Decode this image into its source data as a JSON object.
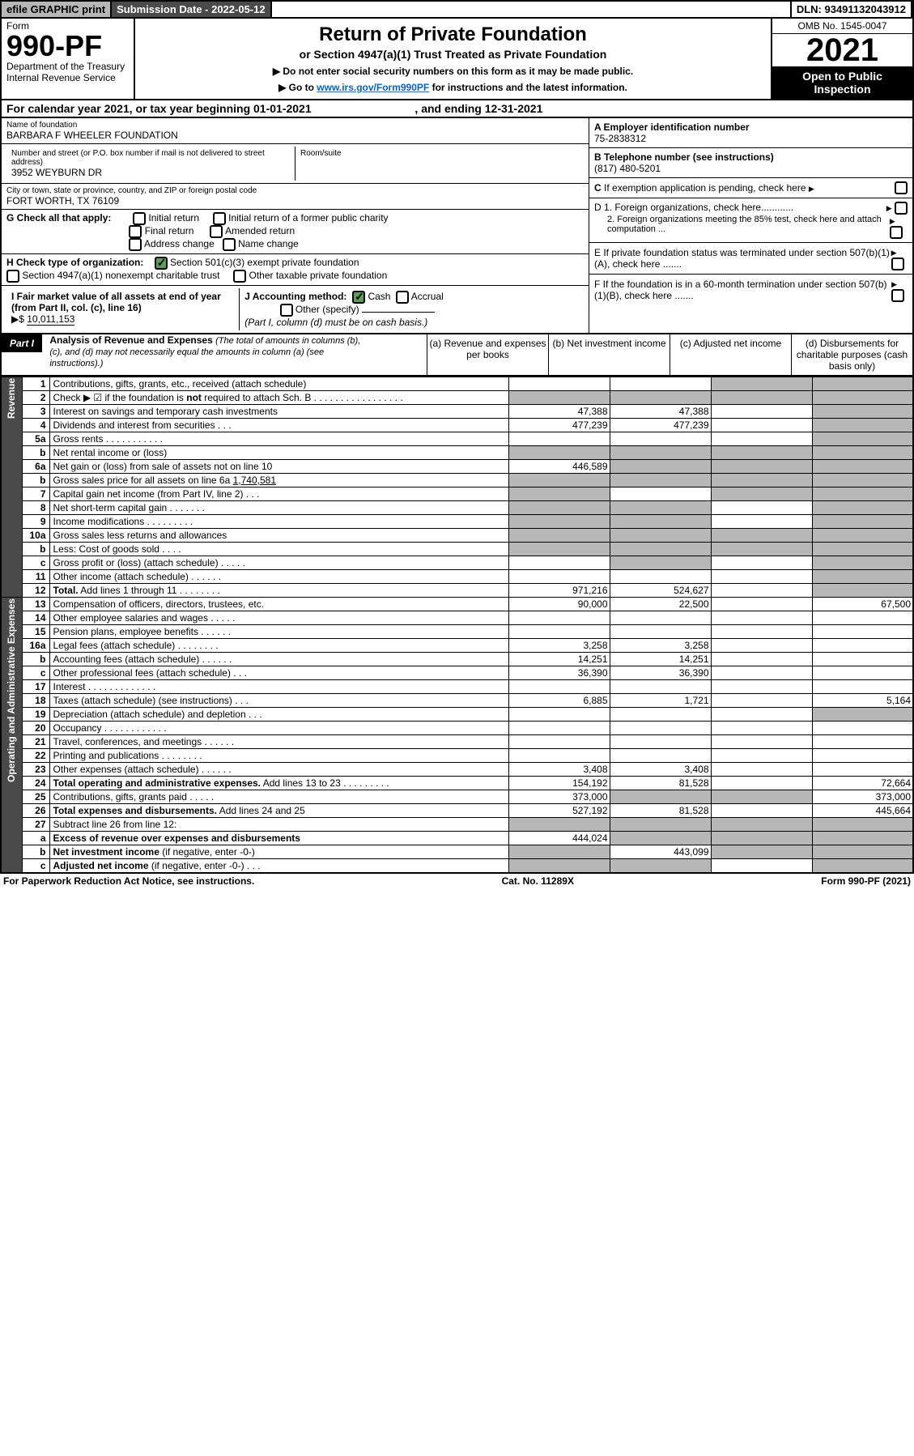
{
  "topbar": {
    "efile": "efile GRAPHIC print",
    "subdate_label": "Submission Date - 2022-05-12",
    "dln": "DLN: 93491132043912"
  },
  "header": {
    "form_word": "Form",
    "form_no": "990-PF",
    "dept1": "Department of the Treasury",
    "dept2": "Internal Revenue Service",
    "title": "Return of Private Foundation",
    "subtitle": "or Section 4947(a)(1) Trust Treated as Private Foundation",
    "arrow1": "▶ Do not enter social security numbers on this form as it may be made public.",
    "arrow2_pre": "▶ Go to ",
    "arrow2_link": "www.irs.gov/Form990PF",
    "arrow2_post": " for instructions and the latest information.",
    "omb": "OMB No. 1545-0047",
    "year": "2021",
    "open": "Open to Public Inspection"
  },
  "cal": "For calendar year 2021, or tax year beginning 01-01-2021",
  "cal_end": ", and ending 12-31-2021",
  "ident": {
    "name_lbl": "Name of foundation",
    "name": "BARBARA F WHEELER FOUNDATION",
    "addr_lbl": "Number and street (or P.O. box number if mail is not delivered to street address)",
    "addr": "3952 WEYBURN DR",
    "room_lbl": "Room/suite",
    "city_lbl": "City or town, state or province, country, and ZIP or foreign postal code",
    "city": "FORT WORTH, TX  76109",
    "ein_lbl": "A Employer identification number",
    "ein": "75-2838312",
    "tel_lbl": "B Telephone number (see instructions)",
    "tel": "(817) 480-5201",
    "c_lbl": "C If exemption application is pending, check here",
    "g_lbl": "G Check all that apply:",
    "g_opts": [
      "Initial return",
      "Final return",
      "Address change",
      "Initial return of a former public charity",
      "Amended return",
      "Name change"
    ],
    "h_lbl": "H Check type of organization:",
    "h_opt1": "Section 501(c)(3) exempt private foundation",
    "h_opt2": "Section 4947(a)(1) nonexempt charitable trust",
    "h_opt3": "Other taxable private foundation",
    "i_lbl": "I Fair market value of all assets at end of year (from Part II, col. (c), line 16)",
    "i_val": "10,011,153",
    "j_lbl": "J Accounting method:",
    "j_cash": "Cash",
    "j_acc": "Accrual",
    "j_other": "Other (specify)",
    "j_note": "(Part I, column (d) must be on cash basis.)",
    "d1": "D 1. Foreign organizations, check here............",
    "d2": "2. Foreign organizations meeting the 85% test, check here and attach computation ...",
    "e_lbl": "E  If private foundation status was terminated under section 507(b)(1)(A), check here .......",
    "f_lbl": "F  If the foundation is in a 60-month termination under section 507(b)(1)(B), check here .......",
    "arrow": "▶$ "
  },
  "part1": {
    "label": "Part I",
    "title": "Analysis of Revenue and Expenses",
    "title_note": "(The total of amounts in columns (b), (c), and (d) may not necessarily equal the amounts in column (a) (see instructions).)",
    "cols": [
      "(a)  Revenue and expenses per books",
      "(b) Net investment income",
      "(c) Adjusted net income",
      "(d) Disbursements for charitable purposes (cash basis only)"
    ]
  },
  "side_rev": "Revenue",
  "side_exp": "Operating and Administrative Expenses",
  "rows": [
    {
      "n": "1",
      "d": "Contributions, gifts, grants, etc., received (attach schedule)",
      "a": "",
      "b": "",
      "c": "shade",
      "dd": "shade"
    },
    {
      "n": "2",
      "d": "Check ▶ ☑ if the foundation is <b>not</b> required to attach Sch. B  .  .  .  .  .  .  .  .  .  .  .  .  .  .  .  .  .",
      "a": "shade",
      "b": "shade",
      "c": "shade",
      "dd": "shade"
    },
    {
      "n": "3",
      "d": "Interest on savings and temporary cash investments",
      "a": "47,388",
      "b": "47,388",
      "c": "",
      "dd": "shade"
    },
    {
      "n": "4",
      "d": "Dividends and interest from securities   .  .  .",
      "a": "477,239",
      "b": "477,239",
      "c": "",
      "dd": "shade"
    },
    {
      "n": "5a",
      "d": "Gross rents   .  .  .  .  .  .  .  .  .  .  .",
      "a": "",
      "b": "",
      "c": "",
      "dd": "shade"
    },
    {
      "n": "b",
      "d": "Net rental income or (loss)  ",
      "a": "shade",
      "b": "shade",
      "c": "shade",
      "dd": "shade"
    },
    {
      "n": "6a",
      "d": "Net gain or (loss) from sale of assets not on line 10",
      "a": "446,589",
      "b": "shade",
      "c": "shade",
      "dd": "shade"
    },
    {
      "n": "b",
      "d": "Gross sales price for all assets on line 6a <u>           1,740,581</u>",
      "a": "shade",
      "b": "shade",
      "c": "shade",
      "dd": "shade"
    },
    {
      "n": "7",
      "d": "Capital gain net income (from Part IV, line 2)  .  .  .",
      "a": "shade",
      "b": "",
      "c": "shade",
      "dd": "shade"
    },
    {
      "n": "8",
      "d": "Net short-term capital gain  .  .  .  .  .  .  .",
      "a": "shade",
      "b": "shade",
      "c": "",
      "dd": "shade"
    },
    {
      "n": "9",
      "d": "Income modifications  .  .  .  .  .  .  .  .  .",
      "a": "shade",
      "b": "shade",
      "c": "",
      "dd": "shade"
    },
    {
      "n": "10a",
      "d": "Gross sales less returns and allowances",
      "a": "shade",
      "b": "shade",
      "c": "shade",
      "dd": "shade"
    },
    {
      "n": "b",
      "d": "Less: Cost of goods sold   .  .  .  .",
      "a": "shade",
      "b": "shade",
      "c": "shade",
      "dd": "shade"
    },
    {
      "n": "c",
      "d": "Gross profit or (loss) (attach schedule)   .  .  .  .  .",
      "a": "",
      "b": "shade",
      "c": "",
      "dd": "shade"
    },
    {
      "n": "11",
      "d": "Other income (attach schedule)   .  .  .  .  .  .",
      "a": "",
      "b": "",
      "c": "",
      "dd": "shade"
    },
    {
      "n": "12",
      "d": "<b>Total.</b> Add lines 1 through 11   .  .  .  .  .  .  .  .",
      "a": "971,216",
      "b": "524,627",
      "c": "",
      "dd": "shade"
    }
  ],
  "exp_rows": [
    {
      "n": "13",
      "d": "Compensation of officers, directors, trustees, etc.",
      "a": "90,000",
      "b": "22,500",
      "c": "",
      "dd": "67,500"
    },
    {
      "n": "14",
      "d": "Other employee salaries and wages  .  .  .  .  .",
      "a": "",
      "b": "",
      "c": "",
      "dd": ""
    },
    {
      "n": "15",
      "d": "Pension plans, employee benefits  .  .  .  .  .  .",
      "a": "",
      "b": "",
      "c": "",
      "dd": ""
    },
    {
      "n": "16a",
      "d": "Legal fees (attach schedule)  .  .  .  .  .  .  .  .",
      "a": "3,258",
      "b": "3,258",
      "c": "",
      "dd": ""
    },
    {
      "n": "b",
      "d": "Accounting fees (attach schedule)  .  .  .  .  .  .",
      "a": "14,251",
      "b": "14,251",
      "c": "",
      "dd": ""
    },
    {
      "n": "c",
      "d": "Other professional fees (attach schedule)   .  .  .",
      "a": "36,390",
      "b": "36,390",
      "c": "",
      "dd": ""
    },
    {
      "n": "17",
      "d": "Interest  .  .  .  .  .  .  .  .  .  .  .  .  .",
      "a": "",
      "b": "",
      "c": "",
      "dd": ""
    },
    {
      "n": "18",
      "d": "Taxes (attach schedule) (see instructions)   .  .  .",
      "a": "6,885",
      "b": "1,721",
      "c": "",
      "dd": "5,164"
    },
    {
      "n": "19",
      "d": "Depreciation (attach schedule) and depletion   .  .  .",
      "a": "",
      "b": "",
      "c": "",
      "dd": "shade"
    },
    {
      "n": "20",
      "d": "Occupancy  .  .  .  .  .  .  .  .  .  .  .  .",
      "a": "",
      "b": "",
      "c": "",
      "dd": ""
    },
    {
      "n": "21",
      "d": "Travel, conferences, and meetings  .  .  .  .  .  .",
      "a": "",
      "b": "",
      "c": "",
      "dd": ""
    },
    {
      "n": "22",
      "d": "Printing and publications  .  .  .  .  .  .  .  .",
      "a": "",
      "b": "",
      "c": "",
      "dd": ""
    },
    {
      "n": "23",
      "d": "Other expenses (attach schedule)  .  .  .  .  .  .",
      "a": "3,408",
      "b": "3,408",
      "c": "",
      "dd": ""
    },
    {
      "n": "24",
      "d": "<b>Total operating and administrative expenses.</b> Add lines 13 to 23  .  .  .  .  .  .  .  .  .",
      "a": "154,192",
      "b": "81,528",
      "c": "",
      "dd": "72,664"
    },
    {
      "n": "25",
      "d": "Contributions, gifts, grants paid   .  .  .  .  .",
      "a": "373,000",
      "b": "shade",
      "c": "shade",
      "dd": "373,000"
    },
    {
      "n": "26",
      "d": "<b>Total expenses and disbursements.</b> Add lines 24 and 25",
      "a": "527,192",
      "b": "81,528",
      "c": "",
      "dd": "445,664"
    },
    {
      "n": "27",
      "d": "Subtract line 26 from line 12:",
      "a": "shade",
      "b": "shade",
      "c": "shade",
      "dd": "shade"
    },
    {
      "n": "a",
      "d": "<b>Excess of revenue over expenses and disbursements</b>",
      "a": "444,024",
      "b": "shade",
      "c": "shade",
      "dd": "shade"
    },
    {
      "n": "b",
      "d": "<b>Net investment income</b> (if negative, enter -0-)",
      "a": "shade",
      "b": "443,099",
      "c": "shade",
      "dd": "shade"
    },
    {
      "n": "c",
      "d": "<b>Adjusted net income</b> (if negative, enter -0-)  .  .  .",
      "a": "shade",
      "b": "shade",
      "c": "",
      "dd": "shade"
    }
  ],
  "footer": {
    "left": "For Paperwork Reduction Act Notice, see instructions.",
    "mid": "Cat. No. 11289X",
    "right": "Form 990-PF (2021)"
  }
}
